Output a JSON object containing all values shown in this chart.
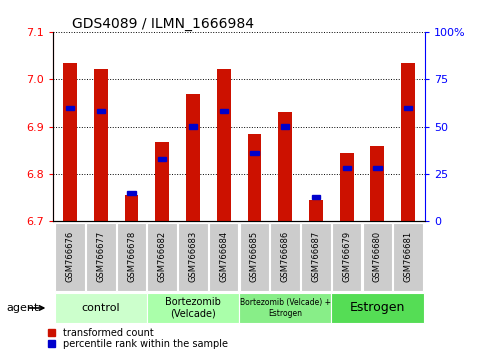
{
  "title": "GDS4089 / ILMN_1666984",
  "samples": [
    "GSM766676",
    "GSM766677",
    "GSM766678",
    "GSM766682",
    "GSM766683",
    "GSM766684",
    "GSM766685",
    "GSM766686",
    "GSM766687",
    "GSM766679",
    "GSM766680",
    "GSM766681"
  ],
  "transformed_count": [
    7.035,
    7.022,
    6.755,
    6.868,
    6.968,
    7.022,
    6.885,
    6.93,
    6.745,
    6.845,
    6.858,
    7.035
  ],
  "percentile_rank": [
    60,
    58,
    15,
    33,
    50,
    58,
    36,
    50,
    13,
    28,
    28,
    60
  ],
  "ymin": 6.7,
  "ymax": 7.1,
  "yticks": [
    6.7,
    6.8,
    6.9,
    7.0,
    7.1
  ],
  "y2ticks": [
    0,
    25,
    50,
    75,
    100
  ],
  "y2ticklabels": [
    "0",
    "25",
    "50",
    "75",
    "100%"
  ],
  "groups": [
    {
      "label": "control",
      "start": 0,
      "end": 3,
      "color": "#ccffcc",
      "fontsize": 8
    },
    {
      "label": "Bortezomib\n(Velcade)",
      "start": 3,
      "end": 6,
      "color": "#aaffaa",
      "fontsize": 7
    },
    {
      "label": "Bortezomib (Velcade) +\nEstrogen",
      "start": 6,
      "end": 9,
      "color": "#88ee88",
      "fontsize": 5.5
    },
    {
      "label": "Estrogen",
      "start": 9,
      "end": 12,
      "color": "#55dd55",
      "fontsize": 9
    }
  ],
  "bar_color": "#cc1100",
  "percentile_color": "#0000cc",
  "bar_width": 0.45,
  "title_fontsize": 10,
  "tick_fontsize": 8,
  "sample_fontsize": 6
}
